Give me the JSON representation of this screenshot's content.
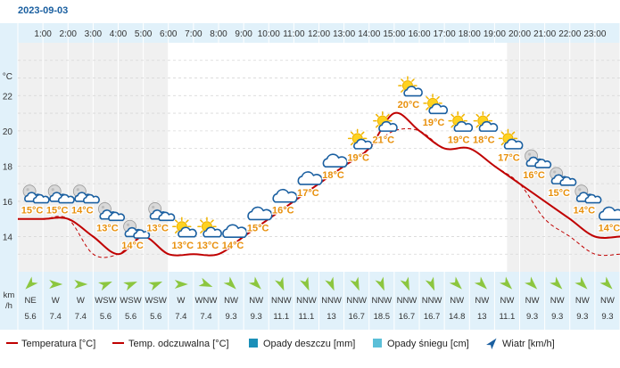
{
  "date": "2023-09-03",
  "hours": [
    "1:00",
    "2:00",
    "3:00",
    "4:00",
    "5:00",
    "6:00",
    "7:00",
    "8:00",
    "9:00",
    "10:00",
    "11:00",
    "12:00",
    "13:00",
    "14:00",
    "15:00",
    "16:00",
    "17:00",
    "18:00",
    "19:00",
    "20:00",
    "21:00",
    "22:00",
    "23:00"
  ],
  "y_unit_label": "°C",
  "wind_unit_label": [
    "km",
    "/h"
  ],
  "icons": [
    "partly-cloudy-night",
    "partly-cloudy-night",
    "partly-cloudy-night",
    "partly-cloudy-night",
    "partly-cloudy-night",
    "partly-cloudy-night",
    "partly-cloudy-day",
    "partly-cloudy-day",
    "cloudy",
    "cloudy",
    "cloudy",
    "cloudy",
    "cloudy",
    "partly-cloudy-day",
    "partly-cloudy-day",
    "partly-cloudy-day",
    "partly-cloudy-day",
    "partly-cloudy-day",
    "partly-cloudy-day",
    "partly-cloudy-day",
    "partly-cloudy-night",
    "partly-cloudy-night",
    "partly-cloudy-night",
    "cloudy"
  ],
  "night_bands": [
    [
      0,
      6
    ],
    [
      19.5,
      24
    ]
  ],
  "wind": {
    "directions": [
      "NE",
      "W",
      "W",
      "WSW",
      "WSW",
      "WSW",
      "W",
      "WNW",
      "NW",
      "NW",
      "NNW",
      "NNW",
      "NNW",
      "NNW",
      "NNW",
      "NNW",
      "NNW",
      "NW",
      "NW",
      "NW",
      "NW",
      "NW",
      "NW",
      "NW"
    ],
    "speeds": [
      "5.6",
      "7.4",
      "7.4",
      "5.6",
      "5.6",
      "5.6",
      "7.4",
      "7.4",
      "9.3",
      "9.3",
      "11.1",
      "11.1",
      "13",
      "16.7",
      "18.5",
      "16.7",
      "16.7",
      "14.8",
      "13",
      "11.1",
      "9.3",
      "9.3",
      "9.3",
      "9.3"
    ]
  },
  "legend": {
    "temperature": "Temperatura [°C]",
    "feels_like": "Temp. odczuwalna [°C]",
    "rain": "Opady deszczu [mm]",
    "snow": "Opady śniegu [cm]",
    "wind": "Wiatr [km/h]"
  },
  "colors": {
    "temperature": "#c00000",
    "rain": "#1a8fb8",
    "snow": "#5bbfd8",
    "wind_arrow": "#8cc63f",
    "label_orange": "#e8900c",
    "axis_blue": "#1a5fa0",
    "header_bg": "#e1f1fa",
    "night_bg": "#f0f0f0"
  },
  "chart_data": {
    "type": "line",
    "x": [
      0,
      1,
      2,
      3,
      4,
      5,
      6,
      7,
      8,
      9,
      10,
      11,
      12,
      13,
      14,
      15,
      16,
      17,
      18,
      19,
      20,
      21,
      22,
      23,
      24
    ],
    "xlabel": "",
    "ylabel": "°C",
    "ylim": [
      12,
      25
    ],
    "yticks": [
      14,
      16,
      18,
      20,
      22
    ],
    "series": [
      {
        "name": "Temperatura [°C]",
        "values": [
          15,
          15,
          15,
          14,
          13,
          14,
          13,
          13,
          13,
          14,
          15,
          16,
          17,
          18,
          19,
          21,
          20,
          19,
          19,
          18,
          17,
          16,
          15,
          14,
          14
        ]
      },
      {
        "name": "Temp. odczuwalna [°C]",
        "values": [
          15,
          15,
          15,
          13,
          13,
          14,
          13,
          13,
          13,
          14,
          15,
          16,
          17,
          18,
          19,
          20,
          20,
          19,
          19,
          18,
          17,
          15,
          14,
          13,
          13
        ]
      }
    ],
    "point_labels": [
      "15°C",
      "15°C",
      "14°C",
      "13°C",
      "14°C",
      "13°C",
      "13°C",
      "13°C",
      "14°C",
      "15°C",
      "16°C",
      "17°C",
      "18°C",
      "19°C",
      "21°C",
      "20°C",
      "19°C",
      "19°C",
      "18°C",
      "17°C",
      "16°C",
      "15°C",
      "14°C",
      "14°C"
    ]
  }
}
